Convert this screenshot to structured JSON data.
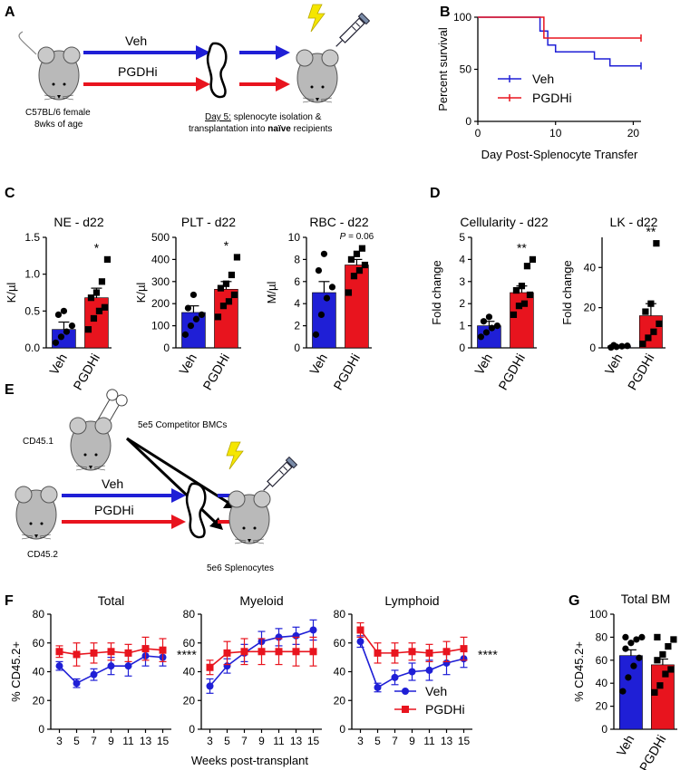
{
  "panels": [
    "A",
    "B",
    "C",
    "D",
    "E",
    "F",
    "G"
  ],
  "colors": {
    "veh": "#1f1fd6",
    "pgdhi": "#e8141e",
    "mouse": "#b9b9b9",
    "bolt": "#f5e600"
  },
  "schematicA": {
    "arrow_veh": "Veh",
    "arrow_pgdhi": "PGDHi",
    "mouse_desc_1": "C57BL/6 female",
    "mouse_desc_2": "8wks of age",
    "note_1_underlined": "Day 5:",
    "note_1_rest": "splenocyte isolation &",
    "note_2_pre": "transplantation into ",
    "note_2_bold": "naïve",
    "note_2_post": " recipients"
  },
  "schematicE": {
    "donor_label": "CD45.1",
    "competitor": "5e5 Competitor BMCs",
    "arrow_veh": "Veh",
    "arrow_pgdhi": "PGDHi",
    "host_label": "CD45.2",
    "splenocytes": "5e6 Splenocytes"
  },
  "chart_data": [
    {
      "panel": "B",
      "type": "line",
      "subtype": "survival",
      "xlabel": "Day Post-Splenocyte Transfer",
      "ylabel": "Percent survival",
      "xlim": [
        0,
        21
      ],
      "ylim": [
        0,
        100
      ],
      "xticks": [
        0,
        10,
        20
      ],
      "yticks": [
        0,
        50,
        100
      ],
      "legend": "bottom-right",
      "series": [
        {
          "name": "Veh",
          "steps": [
            [
              0,
              100
            ],
            [
              8,
              100
            ],
            [
              8,
              86.7
            ],
            [
              9,
              86.7
            ],
            [
              9,
              73.3
            ],
            [
              10,
              73.3
            ],
            [
              10,
              66.7
            ],
            [
              15,
              66.7
            ],
            [
              15,
              60
            ],
            [
              17,
              60
            ],
            [
              17,
              53.3
            ],
            [
              21,
              53.3
            ]
          ]
        },
        {
          "name": "PGDHi",
          "steps": [
            [
              0,
              100
            ],
            [
              8.5,
              100
            ],
            [
              8.5,
              80
            ],
            [
              21,
              80
            ]
          ]
        }
      ]
    },
    {
      "panel": "C",
      "type": "bar",
      "title": "NE - d22",
      "ylabel": "K/µl",
      "ylim": [
        0,
        1.5
      ],
      "yticks": [
        "0.0",
        "0.5",
        "1.0",
        "1.5"
      ],
      "categories": [
        "Veh",
        "PGDHi"
      ],
      "values": [
        0.25,
        0.68
      ],
      "sem": [
        0.1,
        0.13
      ],
      "significance": "*",
      "points": [
        [
          0.07,
          0.15,
          0.22,
          0.3,
          0.45,
          0.5
        ],
        [
          0.25,
          0.4,
          0.5,
          0.55,
          0.68,
          0.75,
          0.9,
          1.2
        ]
      ]
    },
    {
      "panel": "C",
      "type": "bar",
      "title": "PLT - d22",
      "ylabel": "K/µl",
      "ylim": [
        0,
        500
      ],
      "yticks": [
        "0",
        "100",
        "200",
        "300",
        "400",
        "500"
      ],
      "categories": [
        "Veh",
        "PGDHi"
      ],
      "values": [
        160,
        265
      ],
      "sem": [
        30,
        35
      ],
      "significance": "*",
      "points": [
        [
          60,
          100,
          130,
          150,
          180,
          240
        ],
        [
          140,
          190,
          210,
          240,
          270,
          290,
          330,
          410
        ]
      ]
    },
    {
      "panel": "C",
      "type": "bar",
      "title": "RBC - d22",
      "ylabel": "M/µl",
      "ylim": [
        0,
        10
      ],
      "yticks": [
        "0",
        "2",
        "4",
        "6",
        "8",
        "10"
      ],
      "categories": [
        "Veh",
        "PGDHi"
      ],
      "values": [
        5.0,
        7.5
      ],
      "sem": [
        1.0,
        0.5
      ],
      "significance_p": "0.06",
      "points": [
        [
          1.2,
          3.0,
          4.5,
          5.5,
          7.0,
          8.5
        ],
        [
          5.0,
          6.5,
          7.0,
          7.5,
          8.0,
          8.5,
          9.0
        ]
      ]
    },
    {
      "panel": "D",
      "type": "bar",
      "title": "Cellularity - d22",
      "ylabel": "Fold change",
      "ylim": [
        0,
        5
      ],
      "yticks": [
        "0",
        "1",
        "2",
        "3",
        "4",
        "5"
      ],
      "categories": [
        "Veh",
        "PGDHi"
      ],
      "values": [
        1.0,
        2.5
      ],
      "sem": [
        0.2,
        0.3
      ],
      "significance": "**",
      "points": [
        [
          0.5,
          0.7,
          0.9,
          1.0,
          1.2,
          1.4
        ],
        [
          1.5,
          1.9,
          2.0,
          2.4,
          2.6,
          2.8,
          3.7,
          4.0
        ]
      ]
    },
    {
      "panel": "D",
      "type": "bar",
      "title": "LK - d22",
      "ylabel": "Fold change",
      "ylim": [
        0,
        55
      ],
      "yticks": [
        "0",
        "20",
        "40"
      ],
      "categories": [
        "Veh",
        "PGDHi"
      ],
      "values": [
        1.0,
        16
      ],
      "sem": [
        0.3,
        6
      ],
      "significance": "**",
      "points": [
        [
          0.2,
          0.5,
          0.8,
          1.0,
          1.3
        ],
        [
          2,
          5,
          8,
          12,
          18,
          22,
          52
        ]
      ]
    },
    {
      "panel": "F",
      "type": "line",
      "title": "Total",
      "ylabel": "% CD45.2+",
      "xlabel": "Weeks post-transplant",
      "ylim": [
        0,
        80
      ],
      "yticks": [
        0,
        20,
        40,
        60,
        80
      ],
      "x": [
        3,
        5,
        7,
        9,
        11,
        13,
        15
      ],
      "significance": "****",
      "series": [
        {
          "name": "Veh",
          "values": [
            44,
            32,
            38,
            44,
            44,
            51,
            50
          ],
          "err": [
            3,
            3,
            4,
            6,
            7,
            7,
            6
          ]
        },
        {
          "name": "PGDHi",
          "values": [
            54,
            52,
            53,
            54,
            53,
            56,
            55
          ],
          "err": [
            4,
            8,
            7,
            6,
            6,
            8,
            8
          ]
        }
      ]
    },
    {
      "panel": "F",
      "type": "line",
      "title": "Myeloid",
      "ylim": [
        0,
        80
      ],
      "yticks": [
        0,
        20,
        40,
        60,
        80
      ],
      "x": [
        3,
        5,
        7,
        9,
        11,
        13,
        15
      ],
      "series": [
        {
          "name": "Veh",
          "values": [
            30,
            44,
            53,
            61,
            64,
            65,
            69
          ],
          "err": [
            5,
            5,
            6,
            7,
            6,
            6,
            7
          ]
        },
        {
          "name": "PGDHi",
          "values": [
            43,
            53,
            54,
            54,
            54,
            54,
            54
          ],
          "err": [
            5,
            8,
            9,
            9,
            9,
            10,
            10
          ]
        }
      ]
    },
    {
      "panel": "F",
      "type": "line",
      "title": "Lymphoid",
      "ylim": [
        0,
        80
      ],
      "yticks": [
        0,
        20,
        40,
        60,
        80
      ],
      "x": [
        3,
        5,
        7,
        9,
        11,
        13,
        15
      ],
      "significance": "****",
      "legend": "bottom-right",
      "series": [
        {
          "name": "Veh",
          "values": [
            61,
            29,
            36,
            40,
            41,
            46,
            49
          ],
          "err": [
            4,
            3,
            5,
            6,
            7,
            8,
            6
          ]
        },
        {
          "name": "PGDHi",
          "values": [
            69,
            53,
            53,
            54,
            53,
            54,
            56
          ],
          "err": [
            5,
            7,
            7,
            6,
            6,
            7,
            8
          ]
        }
      ]
    },
    {
      "panel": "G",
      "type": "bar",
      "title": "Total BM",
      "ylabel": "% CD45.2+",
      "ylim": [
        0,
        100
      ],
      "yticks": [
        0,
        20,
        40,
        60,
        80,
        100
      ],
      "categories": [
        "Veh",
        "PGDHi"
      ],
      "values": [
        64,
        56
      ],
      "sem": [
        5,
        5
      ],
      "points": [
        [
          33,
          45,
          55,
          62,
          70,
          75,
          78,
          80,
          80
        ],
        [
          32,
          38,
          48,
          52,
          60,
          65,
          72,
          78,
          80
        ]
      ]
    }
  ]
}
